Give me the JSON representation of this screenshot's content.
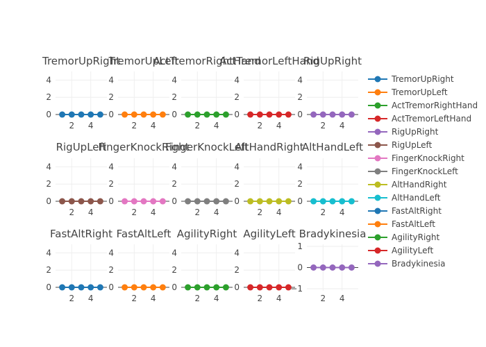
{
  "chart_data": {
    "type": "line",
    "layout": "small-multiples-3x5",
    "x": [
      1,
      2,
      3,
      4,
      5
    ],
    "xticks": [
      2,
      4
    ],
    "grid": true,
    "legend_placement": "right",
    "panels": [
      {
        "title": "TremorUpRight",
        "color": "#1f77b4",
        "y": [
          0,
          0,
          0,
          0,
          0
        ],
        "ylim": [
          -0.4,
          5
        ],
        "yticks": [
          0,
          2,
          4
        ]
      },
      {
        "title": "TremorUpLeft",
        "color": "#ff7f0e",
        "y": [
          0,
          0,
          0,
          0,
          0
        ],
        "ylim": [
          -0.4,
          5
        ],
        "yticks": [
          0,
          2,
          4
        ]
      },
      {
        "title": "ActTremorRightHand",
        "color": "#2ca02c",
        "y": [
          0,
          0,
          0,
          0,
          0
        ],
        "ylim": [
          -0.4,
          5
        ],
        "yticks": [
          0,
          2,
          4
        ]
      },
      {
        "title": "ActTremorLeftHand",
        "color": "#d62728",
        "y": [
          0,
          0,
          0,
          0,
          0
        ],
        "ylim": [
          -0.4,
          5
        ],
        "yticks": [
          0,
          2,
          4
        ]
      },
      {
        "title": "RigUpRight",
        "color": "#9467bd",
        "y": [
          0,
          0,
          0,
          0,
          0
        ],
        "ylim": [
          -0.4,
          5
        ],
        "yticks": [
          0,
          2,
          4
        ]
      },
      {
        "title": "RigUpLeft",
        "color": "#8c564b",
        "y": [
          0,
          0,
          0,
          0,
          0
        ],
        "ylim": [
          -0.4,
          5
        ],
        "yticks": [
          0,
          2,
          4
        ]
      },
      {
        "title": "FingerKnockRight",
        "color": "#e377c2",
        "y": [
          0,
          0,
          0,
          0,
          0
        ],
        "ylim": [
          -0.4,
          5
        ],
        "yticks": [
          0,
          2,
          4
        ]
      },
      {
        "title": "FingerKnockLeft",
        "color": "#7f7f7f",
        "y": [
          0,
          0,
          0,
          0,
          0
        ],
        "ylim": [
          -0.4,
          5
        ],
        "yticks": [
          0,
          2,
          4
        ]
      },
      {
        "title": "AltHandRight",
        "color": "#bcbd22",
        "y": [
          0,
          0,
          0,
          0,
          0
        ],
        "ylim": [
          -0.4,
          5
        ],
        "yticks": [
          0,
          2,
          4
        ]
      },
      {
        "title": "AltHandLeft",
        "color": "#17becf",
        "y": [
          0,
          0,
          0,
          0,
          0
        ],
        "ylim": [
          -0.4,
          5
        ],
        "yticks": [
          0,
          2,
          4
        ]
      },
      {
        "title": "FastAltRight",
        "color": "#1f77b4",
        "y": [
          0,
          0,
          0,
          0,
          0
        ],
        "ylim": [
          -0.4,
          5
        ],
        "yticks": [
          0,
          2,
          4
        ]
      },
      {
        "title": "FastAltLeft",
        "color": "#ff7f0e",
        "y": [
          0,
          0,
          0,
          0,
          0
        ],
        "ylim": [
          -0.4,
          5
        ],
        "yticks": [
          0,
          2,
          4
        ]
      },
      {
        "title": "AgilityRight",
        "color": "#2ca02c",
        "y": [
          0,
          0,
          0,
          0,
          0
        ],
        "ylim": [
          -0.4,
          5
        ],
        "yticks": [
          0,
          2,
          4
        ]
      },
      {
        "title": "AgilityLeft",
        "color": "#d62728",
        "y": [
          0,
          0,
          0,
          0,
          0
        ],
        "ylim": [
          -0.4,
          5
        ],
        "yticks": [
          0,
          2,
          4
        ]
      },
      {
        "title": "Bradykinesia",
        "color": "#9467bd",
        "y": [
          0,
          0,
          0,
          0,
          0
        ],
        "ylim": [
          -1.1,
          1.1
        ],
        "yticks": [
          -1,
          0,
          1
        ]
      }
    ],
    "legend": [
      {
        "label": "TremorUpRight",
        "color": "#1f77b4"
      },
      {
        "label": "TremorUpLeft",
        "color": "#ff7f0e"
      },
      {
        "label": "ActTremorRightHand",
        "color": "#2ca02c"
      },
      {
        "label": "ActTremorLeftHand",
        "color": "#d62728"
      },
      {
        "label": "RigUpRight",
        "color": "#9467bd"
      },
      {
        "label": "RigUpLeft",
        "color": "#8c564b"
      },
      {
        "label": "FingerKnockRight",
        "color": "#e377c2"
      },
      {
        "label": "FingerKnockLeft",
        "color": "#7f7f7f"
      },
      {
        "label": "AltHandRight",
        "color": "#bcbd22"
      },
      {
        "label": "AltHandLeft",
        "color": "#17becf"
      },
      {
        "label": "FastAltRight",
        "color": "#1f77b4"
      },
      {
        "label": "FastAltLeft",
        "color": "#ff7f0e"
      },
      {
        "label": "AgilityRight",
        "color": "#2ca02c"
      },
      {
        "label": "AgilityLeft",
        "color": "#d62728"
      },
      {
        "label": "Bradykinesia",
        "color": "#9467bd"
      }
    ]
  }
}
